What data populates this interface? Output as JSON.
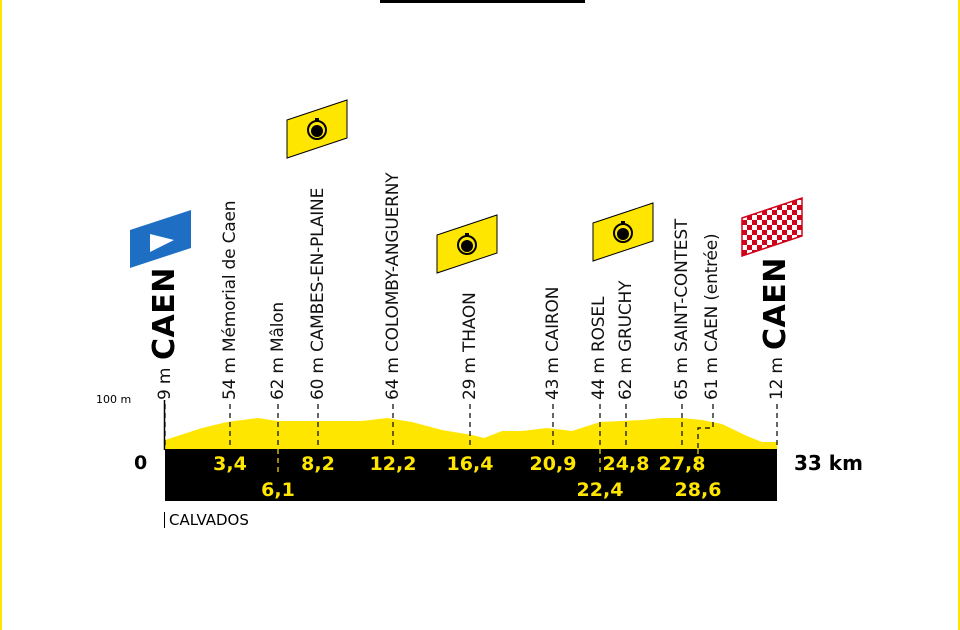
{
  "profile": {
    "scale_label": "100 m",
    "zero_label": "0",
    "total_label": "33 km",
    "department": "CALVADOS",
    "start_city": "CAEN",
    "finish_city": "CAEN",
    "start_alt": "9 m",
    "finish_alt": "12 m",
    "waypoints": [
      {
        "alt": "54 m",
        "name": "Mémorial de Caen",
        "km": "3,4"
      },
      {
        "alt": "62 m",
        "name": "Mâlon",
        "km": "6,1"
      },
      {
        "alt": "60 m",
        "name": "CAMBES-EN-PLAINE",
        "km": "8,2"
      },
      {
        "alt": "64 m",
        "name": "COLOMBY-ANGUERNY",
        "km": "12,2"
      },
      {
        "alt": "29 m",
        "name": "THAON",
        "km": "16,4"
      },
      {
        "alt": "43 m",
        "name": "CAIRON",
        "km": "20,9"
      },
      {
        "alt": "44 m",
        "name": "ROSEL",
        "km": "22,4"
      },
      {
        "alt": "62 m",
        "name": "GRUCHY",
        "km": "24,8"
      },
      {
        "alt": "65 m",
        "name": "SAINT-CONTEST",
        "km": "27,8"
      },
      {
        "alt": "61 m",
        "name": "CAEN (entrée)",
        "km": "28,6"
      }
    ]
  },
  "colors": {
    "yellow": "#ffe600",
    "black": "#000000",
    "blue": "#1e6fc4",
    "red": "#d0021b"
  },
  "icons": [
    "start-flag-icon",
    "stopwatch-icon",
    "finish-flag-icon"
  ]
}
